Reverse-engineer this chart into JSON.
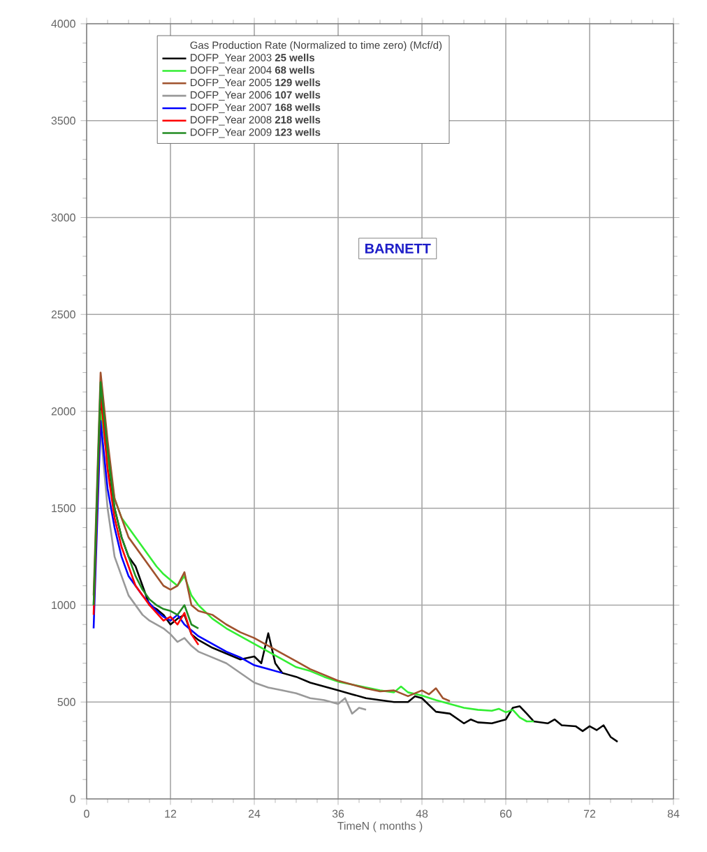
{
  "chart_data": {
    "type": "line",
    "legend_title": "Gas Production Rate (Normalized to time zero)  (Mcf/d)",
    "xlabel": "TimeN ( months )",
    "annotations": [
      "BARNETT"
    ],
    "xlim": [
      0,
      84
    ],
    "xticks": [
      0,
      12,
      24,
      36,
      48,
      60,
      72,
      84
    ],
    "ylim": [
      0,
      4000
    ],
    "yticks": [
      0,
      500,
      1000,
      1500,
      2000,
      2500,
      3000,
      3500,
      4000
    ],
    "grid": true,
    "legend": "top",
    "marker": "none",
    "line_style": "solid",
    "series": [
      {
        "name": "DOFP_Year 2003 **25 wells**",
        "color": "#000000",
        "x": [
          2,
          3,
          4,
          5,
          6,
          7,
          8,
          9,
          10,
          11,
          12,
          13,
          14,
          15,
          16,
          18,
          20,
          22,
          24,
          25,
          26,
          27,
          28,
          30,
          32,
          34,
          36,
          38,
          40,
          42,
          44,
          46,
          47,
          48,
          50,
          52,
          54,
          55,
          56,
          58,
          60,
          61,
          62,
          63,
          64,
          66,
          67,
          68,
          70,
          71,
          72,
          73,
          74,
          75,
          76
        ],
        "values": [
          2050,
          1750,
          1500,
          1350,
          1250,
          1200,
          1100,
          1000,
          980,
          950,
          900,
          930,
          950,
          850,
          820,
          780,
          750,
          720,
          735,
          700,
          855,
          700,
          650,
          630,
          600,
          580,
          560,
          540,
          520,
          510,
          500,
          500,
          530,
          520,
          450,
          440,
          390,
          410,
          395,
          390,
          410,
          470,
          478,
          440,
          400,
          390,
          410,
          380,
          375,
          350,
          375,
          355,
          380,
          320,
          295
        ]
      },
      {
        "name": "DOFP_Year 2004 **68 wells**",
        "color": "#33ee33",
        "x": [
          1,
          2,
          3,
          4,
          5,
          6,
          7,
          8,
          9,
          10,
          11,
          12,
          13,
          14,
          15,
          16,
          18,
          20,
          22,
          24,
          26,
          28,
          30,
          32,
          34,
          36,
          38,
          40,
          42,
          44,
          45,
          46,
          48,
          50,
          52,
          54,
          56,
          58,
          59,
          60,
          61,
          62,
          63,
          64
        ],
        "values": [
          1000,
          2000,
          1750,
          1550,
          1450,
          1400,
          1350,
          1300,
          1250,
          1200,
          1160,
          1130,
          1100,
          1150,
          1050,
          1000,
          930,
          880,
          840,
          800,
          760,
          720,
          680,
          660,
          630,
          605,
          590,
          575,
          560,
          550,
          580,
          550,
          533,
          510,
          490,
          470,
          460,
          455,
          465,
          447,
          460,
          420,
          400,
          400
        ]
      },
      {
        "name": "DOFP_Year 2005 **129 wells**",
        "color": "#a0522d",
        "x": [
          1,
          2,
          3,
          4,
          5,
          6,
          7,
          8,
          9,
          10,
          11,
          12,
          13,
          14,
          15,
          16,
          18,
          20,
          22,
          24,
          26,
          28,
          30,
          32,
          34,
          36,
          38,
          40,
          42,
          44,
          46,
          48,
          49,
          50,
          51,
          52
        ],
        "values": [
          1050,
          2200,
          1850,
          1550,
          1450,
          1350,
          1300,
          1250,
          1200,
          1150,
          1100,
          1080,
          1100,
          1170,
          1000,
          970,
          950,
          900,
          860,
          830,
          790,
          750,
          710,
          670,
          640,
          610,
          590,
          570,
          555,
          560,
          530,
          560,
          540,
          571,
          520,
          505
        ]
      },
      {
        "name": "DOFP_Year 2006 **107 wells**",
        "color": "#999999",
        "x": [
          2,
          3,
          4,
          5,
          6,
          7,
          8,
          9,
          10,
          11,
          12,
          13,
          14,
          15,
          16,
          18,
          20,
          22,
          24,
          26,
          28,
          30,
          32,
          34,
          36,
          37,
          38,
          39,
          40
        ],
        "values": [
          1900,
          1500,
          1250,
          1150,
          1050,
          1000,
          950,
          920,
          900,
          880,
          850,
          810,
          830,
          790,
          760,
          730,
          700,
          650,
          600,
          575,
          560,
          545,
          520,
          510,
          490,
          520,
          440,
          470,
          460
        ]
      },
      {
        "name": "DOFP_Year 2007 **168 wells**",
        "color": "#0000ff",
        "x": [
          1,
          2,
          3,
          4,
          5,
          6,
          8,
          10,
          11,
          12,
          13,
          14,
          16,
          18,
          20,
          22,
          24,
          26,
          28
        ],
        "values": [
          880,
          1950,
          1600,
          1400,
          1250,
          1150,
          1050,
          970,
          940,
          920,
          950,
          900,
          840,
          800,
          760,
          730,
          690,
          670,
          650
        ]
      },
      {
        "name": "DOFP_Year 2008 **218 wells**",
        "color": "#ff0000",
        "x": [
          1,
          2,
          3,
          4,
          5,
          6,
          7,
          8,
          9,
          10,
          11,
          12,
          13,
          14,
          15,
          16
        ],
        "values": [
          950,
          2100,
          1700,
          1450,
          1300,
          1200,
          1100,
          1050,
          1000,
          960,
          920,
          940,
          900,
          960,
          850,
          795
        ]
      },
      {
        "name": "DOFP_Year 2009 **123 wells**",
        "color": "#228b22",
        "x": [
          1,
          2,
          3,
          4,
          5,
          6,
          7,
          8,
          9,
          10,
          11,
          12,
          13,
          14,
          15,
          16
        ],
        "values": [
          1000,
          2150,
          1800,
          1500,
          1350,
          1250,
          1150,
          1080,
          1030,
          1000,
          980,
          970,
          950,
          1000,
          900,
          880
        ]
      }
    ]
  }
}
